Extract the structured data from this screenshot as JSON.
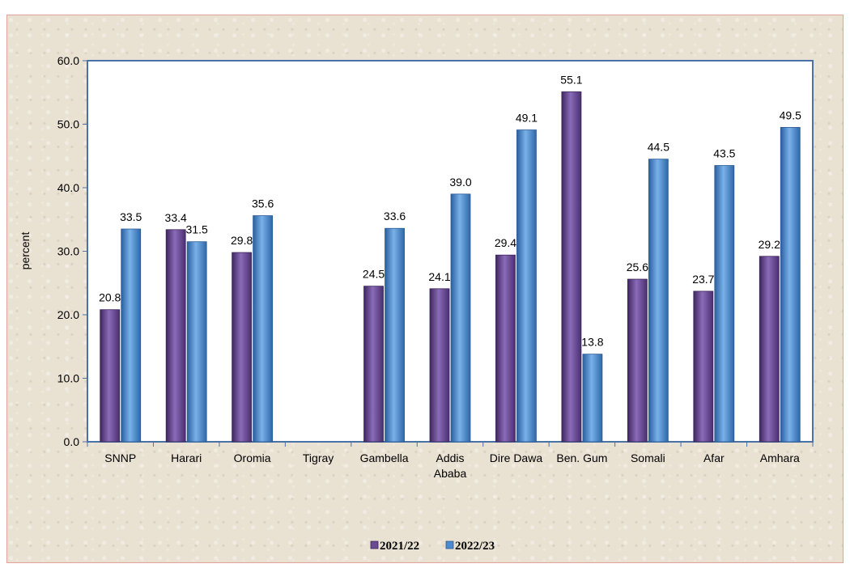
{
  "chart_data": {
    "type": "bar",
    "title": "",
    "xlabel": "",
    "ylabel": "percent",
    "ylim": [
      0,
      60
    ],
    "yticks": [
      "0.0",
      "10.0",
      "20.0",
      "30.0",
      "40.0",
      "50.0",
      "60.0"
    ],
    "grid": false,
    "legend_position": "bottom",
    "categories": [
      [
        "SNNP"
      ],
      [
        "Harari"
      ],
      [
        "Oromia"
      ],
      [
        "Tigray"
      ],
      [
        "Gambella"
      ],
      [
        "Addis",
        "Ababa"
      ],
      [
        "Dire Dawa"
      ],
      [
        "Ben. Gum"
      ],
      [
        "Somali"
      ],
      [
        "Afar"
      ],
      [
        "Amhara"
      ]
    ],
    "series": [
      {
        "name": "2021/22",
        "color": "#6a4a93",
        "values": [
          20.8,
          33.4,
          29.8,
          null,
          24.5,
          24.1,
          29.4,
          55.1,
          25.6,
          23.7,
          29.2
        ],
        "labels": [
          "20.8",
          "33.4",
          "29.8",
          "",
          "24.5",
          "24.1",
          "29.4",
          "55.1",
          "25.6",
          "23.7",
          "29.2"
        ]
      },
      {
        "name": "2022/23",
        "color": "#4b8ad1",
        "values": [
          33.5,
          31.5,
          35.6,
          null,
          33.6,
          39.0,
          49.1,
          13.8,
          44.5,
          43.5,
          49.5
        ],
        "labels": [
          "33.5",
          "31.5",
          "35.6",
          "",
          "33.6",
          "39.0",
          "49.1",
          "13.8",
          "44.5",
          "43.5",
          "49.5"
        ]
      }
    ]
  }
}
